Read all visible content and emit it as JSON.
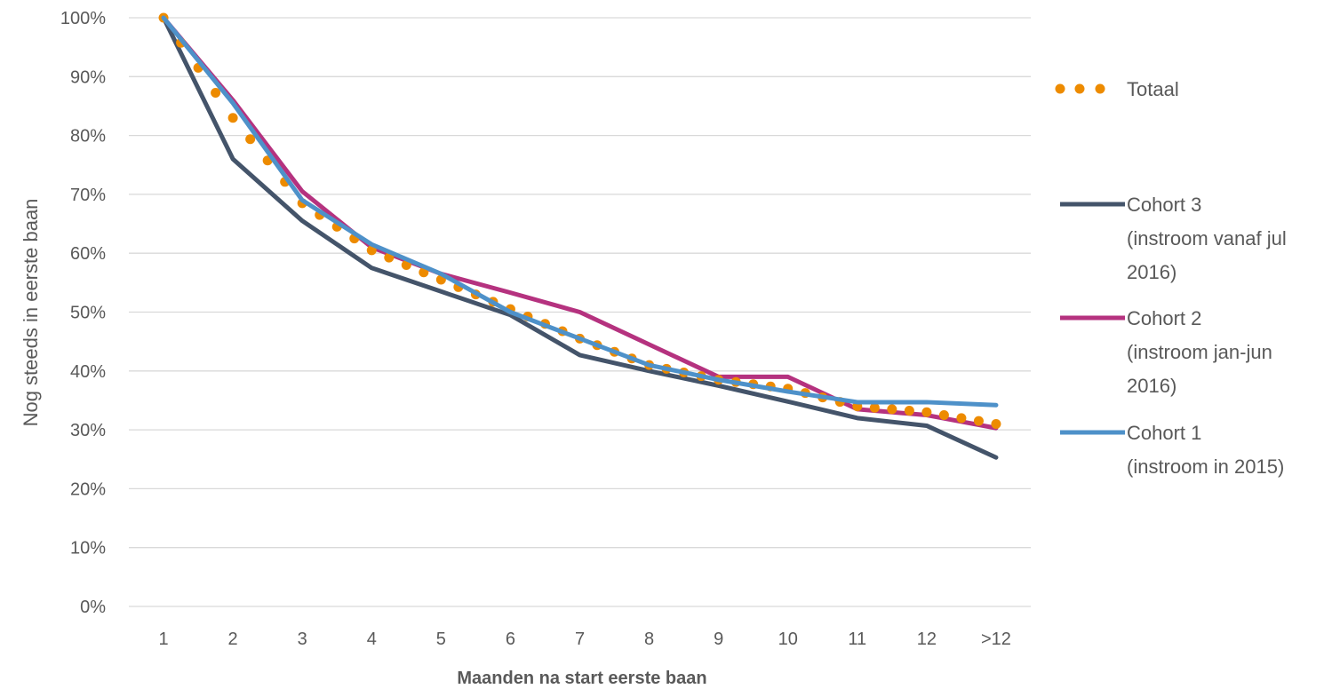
{
  "chart_data": {
    "type": "line",
    "xlabel": "Maanden na start eerste baan",
    "ylabel": "Nog steeds in eerste baan",
    "categories": [
      "1",
      "2",
      "3",
      "4",
      "5",
      "6",
      "7",
      "8",
      "9",
      "10",
      "11",
      "12",
      ">12"
    ],
    "yticks": [
      "0%",
      "10%",
      "20%",
      "30%",
      "40%",
      "50%",
      "60%",
      "70%",
      "80%",
      "90%",
      "100%"
    ],
    "ylim": [
      0,
      100
    ],
    "grid": "horizontal",
    "legend_position": "right",
    "series": [
      {
        "name": "Totaal",
        "legend_lines": [
          "Totaal"
        ],
        "style": "dotted",
        "color": "#ED8B00",
        "values": [
          100,
          83,
          68.5,
          60.5,
          55.5,
          50.5,
          45.5,
          41,
          38.5,
          37,
          34,
          33,
          31
        ]
      },
      {
        "name": "Cohort 3 (instroom vanaf jul 2016)",
        "legend_lines": [
          "Cohort 3",
          "(instroom vanaf jul",
          "2016)"
        ],
        "style": "solid",
        "color": "#44546A",
        "values": [
          100,
          76,
          65.5,
          57.5,
          53.5,
          49.5,
          42.7,
          40,
          37.5,
          34.8,
          32,
          30.7,
          25.3
        ]
      },
      {
        "name": "Cohort 2 (instroom jan-jun 2016)",
        "legend_lines": [
          "Cohort 2",
          "(instroom jan-jun",
          "2016)"
        ],
        "style": "solid",
        "color": "#B5327F",
        "values": [
          100,
          86,
          70.5,
          61,
          56.5,
          53.3,
          50,
          44.5,
          39,
          39,
          33.5,
          32.5,
          30.3
        ]
      },
      {
        "name": "Cohort 1 (instroom in 2015)",
        "legend_lines": [
          "Cohort 1",
          "(instroom in 2015)"
        ],
        "style": "solid",
        "color": "#4E91C9",
        "values": [
          100,
          85.5,
          69,
          61.5,
          56.5,
          50,
          45.5,
          41,
          38.5,
          36.5,
          34.7,
          34.7,
          34.2
        ]
      }
    ]
  }
}
